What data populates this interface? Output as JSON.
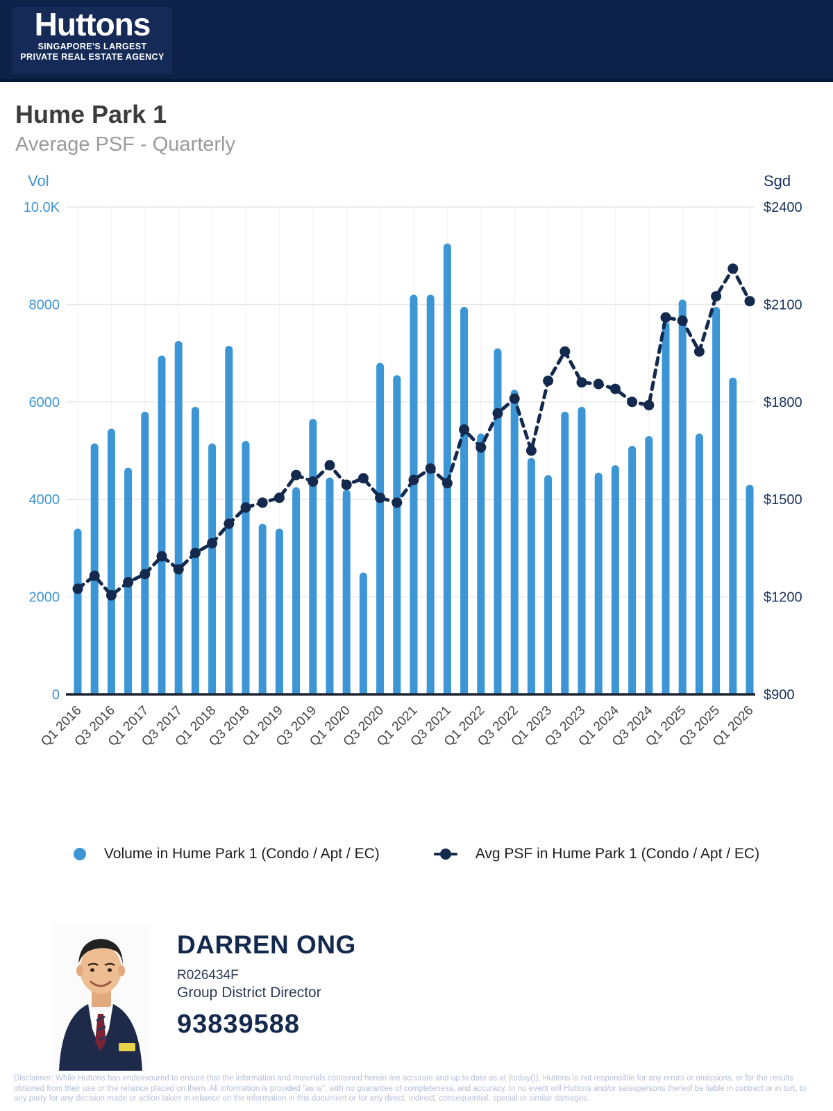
{
  "header": {
    "logo_title": "Huttons",
    "logo_tagline_line1": "SINGAPORE'S LARGEST",
    "logo_tagline_line2": "PRIVATE REAL ESTATE AGENCY"
  },
  "title": "Hume Park 1",
  "subtitle": "Average PSF - Quarterly",
  "chart_data": {
    "type": "bar",
    "title": "Hume Park 1 Average PSF - Quarterly",
    "left_axis": {
      "label": "Vol",
      "tick_labels": [
        "10.0K",
        "8000",
        "6000",
        "4000",
        "2000",
        "0"
      ],
      "min": 0,
      "max": 10000
    },
    "right_axis": {
      "label": "Sgd",
      "tick_labels": [
        "$2400",
        "$2100",
        "$1800",
        "$1500",
        "$1200",
        "$900"
      ],
      "min": 900,
      "max": 2400
    },
    "grid": true,
    "legend_position": "bottom",
    "categories": [
      "Q1 2016",
      "Q2 2016",
      "Q3 2016",
      "Q4 2016",
      "Q1 2017",
      "Q2 2017",
      "Q3 2017",
      "Q4 2017",
      "Q1 2018",
      "Q2 2018",
      "Q3 2018",
      "Q4 2018",
      "Q1 2019",
      "Q2 2019",
      "Q3 2019",
      "Q4 2019",
      "Q1 2020",
      "Q2 2020",
      "Q3 2020",
      "Q4 2020",
      "Q1 2021",
      "Q2 2021",
      "Q3 2021",
      "Q4 2021",
      "Q1 2022",
      "Q2 2022",
      "Q3 2022",
      "Q4 2022",
      "Q1 2023",
      "Q2 2023",
      "Q3 2023",
      "Q4 2023",
      "Q1 2024",
      "Q2 2024",
      "Q3 2024",
      "Q4 2024",
      "Q1 2025",
      "Q2 2025",
      "Q3 2025",
      "Q4 2025",
      "Q1 2026"
    ],
    "x_tick_labels": [
      "Q1 2016",
      "Q3 2016",
      "Q1 2017",
      "Q3 2017",
      "Q1 2018",
      "Q3 2018",
      "Q1 2019",
      "Q3 2019",
      "Q1 2020",
      "Q3 2020",
      "Q1 2021",
      "Q3 2021",
      "Q1 2022",
      "Q3 2022",
      "Q1 2023",
      "Q3 2023",
      "Q1 2024",
      "Q3 2024",
      "Q1 2025",
      "Q3 2025",
      "Q1 2026"
    ],
    "series": [
      {
        "name": "Volume in Hume Park 1 (Condo / Apt / EC)",
        "type": "bar",
        "axis": "left",
        "color": "#3c96d6",
        "values": [
          3400,
          5150,
          5450,
          4650,
          5800,
          6950,
          7250,
          5900,
          5150,
          7150,
          5200,
          3500,
          3400,
          4250,
          5650,
          4450,
          4200,
          2500,
          6800,
          6550,
          8200,
          8200,
          9250,
          7950,
          5350,
          7100,
          6250,
          4850,
          4500,
          5800,
          5900,
          4550,
          4700,
          5100,
          5300,
          7650,
          8100,
          5350,
          7950,
          6500,
          4300
        ]
      },
      {
        "name": "Avg PSF in Hume Park 1 (Condo / Apt / EC)",
        "type": "line",
        "axis": "right",
        "color": "#14294e",
        "dashed": true,
        "values": [
          1225,
          1265,
          1205,
          1245,
          1270,
          1325,
          1285,
          1335,
          1365,
          1425,
          1475,
          1490,
          1505,
          1575,
          1555,
          1605,
          1545,
          1565,
          1505,
          1490,
          1560,
          1595,
          1550,
          1715,
          1660,
          1765,
          1810,
          1650,
          1865,
          1955,
          1860,
          1855,
          1840,
          1800,
          1790,
          2060,
          2050,
          1955,
          2125,
          2210,
          2110
        ]
      }
    ]
  },
  "legend": {
    "volume_label": "Volume in Hume Park 1 (Condo / Apt / EC)",
    "psf_label": "Avg PSF in Hume Park 1 (Condo / Apt / EC)"
  },
  "agent": {
    "name": "DARREN ONG",
    "registration": "R026434F",
    "role": "Group District Director",
    "phone": "93839588"
  },
  "disclaimer": "Disclaimer: While Huttons has endeavoured to ensure that the information and materials contained herein are accurate and up to date as at (today()), Huttons is not responsible for any errors or omissions, or for the results obtained from their use or the reliance placed on them. All information is provided \"as is\", with no guarantee of completeness, and accuracy. In no event will Huttons and/or salespersons thereof be liable in contract or in tort, to any party for any decision made or action taken in reliance on the information in this document or for any direct, indirect, consequential, special or similar damages.",
  "colors": {
    "banner": "#0e2249",
    "bar": "#3c96d6",
    "line": "#14294e",
    "left_axis_text": "#3e93d3",
    "right_axis_text": "#17305c",
    "gridline": "#e7e7e7",
    "baseline": "#1c2430",
    "x_label": "#454545"
  }
}
